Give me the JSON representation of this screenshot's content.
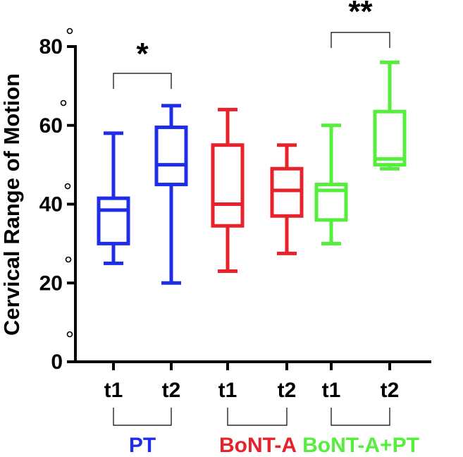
{
  "chart_data": {
    "type": "box",
    "title": "",
    "xlabel": "",
    "ylabel": "Cervical Range of Motion",
    "ylim": [
      0,
      80
    ],
    "yticks": [
      0,
      20,
      40,
      60,
      80
    ],
    "grid": false,
    "legend": "none",
    "categories": [
      "t1",
      "t2",
      "t1",
      "t2",
      "t1",
      "t2"
    ],
    "groups": [
      {
        "name": "PT",
        "color": "#1f2ee6"
      },
      {
        "name": "BoNT-A",
        "color": "#e8222a"
      },
      {
        "name": "BoNT-A+PT",
        "color": "#55ee3d"
      }
    ],
    "boxes": [
      {
        "group": 0,
        "label": "t1",
        "min": 25,
        "q1": 30,
        "median": 38.5,
        "q3": 41.5,
        "max": 58
      },
      {
        "group": 0,
        "label": "t2",
        "min": 20,
        "q1": 45,
        "median": 50,
        "q3": 59.5,
        "max": 65
      },
      {
        "group": 1,
        "label": "t1",
        "min": 23,
        "q1": 34.5,
        "median": 40,
        "q3": 55,
        "max": 64
      },
      {
        "group": 1,
        "label": "t2",
        "min": 27.5,
        "q1": 37,
        "median": 43.5,
        "q3": 49,
        "max": 55
      },
      {
        "group": 2,
        "label": "t1",
        "min": 30,
        "q1": 36,
        "median": 43.5,
        "q3": 45,
        "max": 60
      },
      {
        "group": 2,
        "label": "t2",
        "min": 49,
        "q1": 50,
        "median": 51.5,
        "q3": 63.5,
        "max": 76
      }
    ],
    "significance": [
      {
        "group": 0,
        "label": "*"
      },
      {
        "group": 2,
        "label": "**"
      }
    ]
  }
}
